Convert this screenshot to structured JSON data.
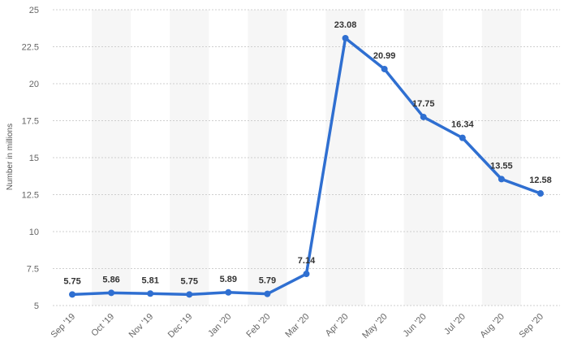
{
  "chart_data": {
    "type": "line",
    "categories": [
      "Sep '19",
      "Oct '19",
      "Nov '19",
      "Dec '19",
      "Jan '20",
      "Feb '20",
      "Mar '20",
      "Apr '20",
      "May '20",
      "Jun '20",
      "Jul '20",
      "Aug '20",
      "Sep '20"
    ],
    "values": [
      5.75,
      5.86,
      5.81,
      5.75,
      5.89,
      5.79,
      7.14,
      23.08,
      20.99,
      17.75,
      16.34,
      13.55,
      12.58
    ],
    "value_labels": [
      "5.75",
      "5.86",
      "5.81",
      "5.75",
      "5.89",
      "5.79",
      "7.14",
      "23.08",
      "20.99",
      "17.75",
      "16.34",
      "13.55",
      "12.58"
    ],
    "ylabel": "Number in millions",
    "ylim": [
      5,
      25
    ],
    "yticks": [
      5,
      7.5,
      10,
      12.5,
      15,
      17.5,
      20,
      22.5,
      25
    ],
    "ytick_labels": [
      "5",
      "7.5",
      "10",
      "12.5",
      "15",
      "17.5",
      "20",
      "22.5",
      "25"
    ],
    "grid": true,
    "line_color": "#2f6fd1",
    "legend": "none"
  }
}
